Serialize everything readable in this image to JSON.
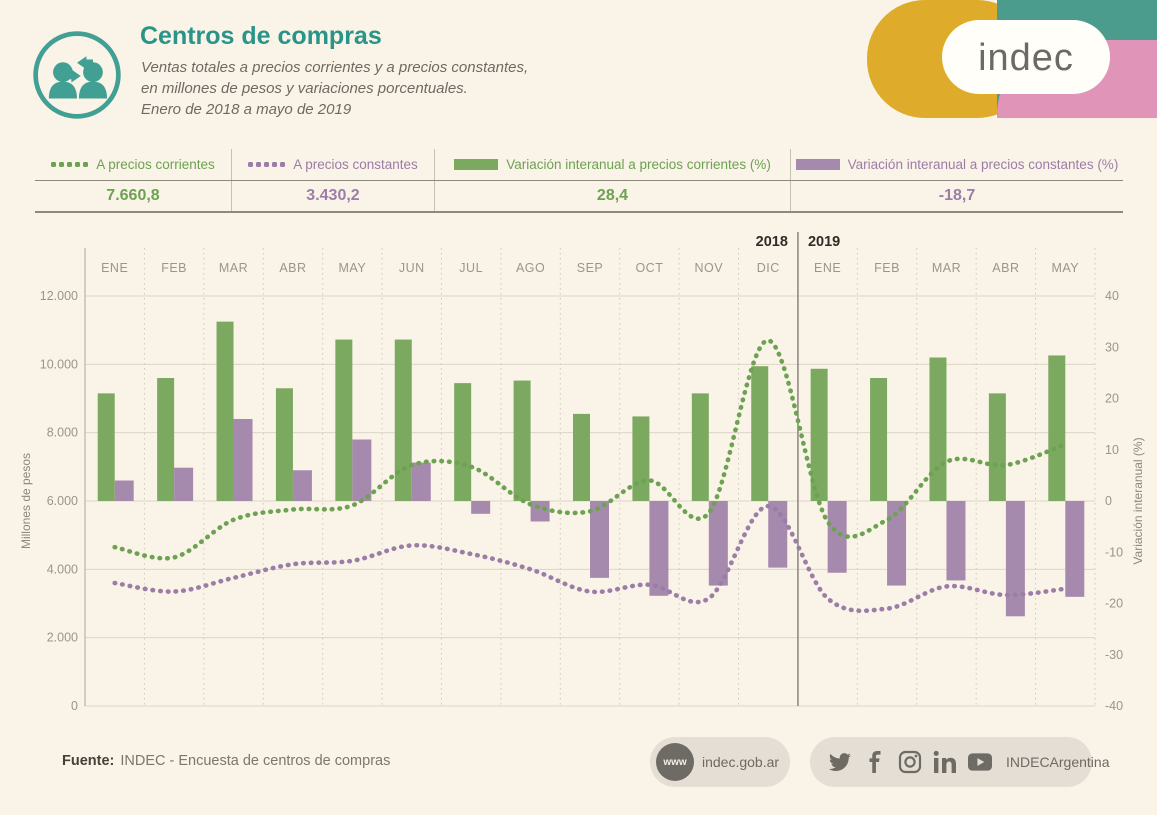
{
  "header": {
    "title": "Centros de compras",
    "subtitle_lines": [
      "Ventas totales a precios corrientes y a precios constantes,",
      "en millones de pesos y variaciones porcentuales.",
      "Enero de 2018 a mayo de 2019"
    ],
    "logo_text": "indec"
  },
  "colors": {
    "teal": "#2a9488",
    "green_bar": "#7ca960",
    "green_text": "#6ca251",
    "purple_bar": "#a68aae",
    "purple_text": "#9b7da7",
    "logo_yellow": "#deac2a",
    "logo_teal": "#4c9c8e",
    "logo_pink": "#e094b8"
  },
  "summary": {
    "items": [
      {
        "label": "A precios corrientes",
        "value": "7.660,8",
        "swatch": "dotted",
        "color_key": "green"
      },
      {
        "label": "A precios constantes",
        "value": "3.430,2",
        "swatch": "dotted",
        "color_key": "purple"
      },
      {
        "label": "Variación interanual a precios corrientes (%)",
        "value": "28,4",
        "swatch": "solid",
        "color_key": "green"
      },
      {
        "label": "Variación interanual a precios constantes (%)",
        "value": "-18,7",
        "swatch": "solid",
        "color_key": "purple"
      }
    ]
  },
  "chart_data": {
    "type": "combo bar+line, dual axis",
    "categories": [
      "ENE",
      "FEB",
      "MAR",
      "ABR",
      "MAY",
      "JUN",
      "JUL",
      "AGO",
      "SEP",
      "OCT",
      "NOV",
      "DIC",
      "ENE",
      "FEB",
      "MAR",
      "ABR",
      "MAY"
    ],
    "year_labels": [
      "2018",
      "2019"
    ],
    "year_split_index": 12,
    "left_axis": {
      "label": "Millones de pesos",
      "min": 0,
      "max": 12000,
      "ticks": [
        "12.000",
        "10.000",
        "8.000",
        "6.000",
        "4.000",
        "2.000",
        "0"
      ],
      "tick_values": [
        12000,
        10000,
        8000,
        6000,
        4000,
        2000,
        0
      ]
    },
    "right_axis": {
      "label": "Variación interanual (%)",
      "min": -40,
      "max": 40,
      "ticks": [
        "40",
        "30",
        "20",
        "10",
        "0",
        "-10",
        "-20",
        "-30",
        "-40"
      ],
      "tick_values": [
        40,
        30,
        20,
        10,
        0,
        -10,
        -20,
        -30,
        -40
      ]
    },
    "series": [
      {
        "name": "A precios corrientes",
        "type": "line-dotted",
        "axis": "left",
        "color": "#6ca251",
        "values": [
          4650,
          4350,
          5450,
          5750,
          5870,
          7050,
          7000,
          5900,
          5700,
          6600,
          5650,
          10700,
          5400,
          5450,
          7150,
          7050,
          7660.8
        ]
      },
      {
        "name": "A precios constantes",
        "type": "line-dotted",
        "axis": "left",
        "color": "#9b7da7",
        "values": [
          3600,
          3350,
          3750,
          4150,
          4250,
          4700,
          4450,
          4000,
          3350,
          3550,
          3150,
          5850,
          3150,
          2850,
          3500,
          3250,
          3430.2
        ]
      },
      {
        "name": "Variación interanual a precios corrientes (%)",
        "type": "bar",
        "axis": "right",
        "color": "#7ca960",
        "values": [
          21,
          24,
          35,
          22,
          31.5,
          31.5,
          23,
          23.5,
          17,
          16.5,
          21,
          26.3,
          25.8,
          24,
          28,
          21,
          28.4
        ]
      },
      {
        "name": "Variación interanual a precios constantes (%)",
        "type": "bar",
        "axis": "right",
        "color": "#a68aae",
        "values": [
          4,
          6.5,
          16,
          6,
          12,
          7.5,
          -2.5,
          -4,
          -15,
          -18.5,
          -16.5,
          -13,
          -14,
          -16.5,
          -15.5,
          -22.5,
          -18.7
        ]
      }
    ],
    "grid": "horizontal lines at left-axis ticks, dotted vertical month separators",
    "legend_position": "top summary band"
  },
  "footer": {
    "fuente_label": "Fuente:",
    "fuente_text": "INDEC - Encuesta de centros de compras",
    "web_icon": "www",
    "web_url": "indec.gob.ar",
    "social_handle": "INDECArgentina"
  }
}
